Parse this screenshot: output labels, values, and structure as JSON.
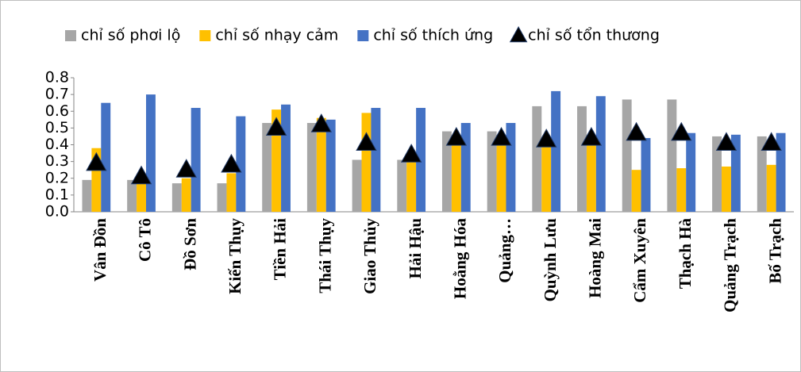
{
  "chart_data": {
    "type": "bar",
    "categories": [
      "Vân Đồn",
      "Cô Tô",
      "Đồ Sơn",
      "Kiến Thụy",
      "Tiền Hải",
      "Thái Thụy",
      "Giao Thủy",
      "Hải Hậu",
      "Hoằng Hóa",
      "Quảng…",
      "Quỳnh Lưu",
      "Hoàng Mai",
      "Cẩm Xuyên",
      "Thạch Hà",
      "Quảng Trạch",
      "Bố Trạch"
    ],
    "series": [
      {
        "name": "chỉ số phơi lộ",
        "color": "#a6a6a6",
        "type": "bar",
        "values": [
          0.19,
          0.19,
          0.17,
          0.17,
          0.53,
          0.53,
          0.31,
          0.31,
          0.48,
          0.48,
          0.63,
          0.63,
          0.67,
          0.67,
          0.45,
          0.45
        ]
      },
      {
        "name": "chỉ số nhạy cảm",
        "color": "#ffc000",
        "type": "bar",
        "values": [
          0.38,
          0.17,
          0.2,
          0.23,
          0.61,
          0.56,
          0.59,
          0.3,
          0.4,
          0.4,
          0.4,
          0.4,
          0.25,
          0.26,
          0.27,
          0.28
        ]
      },
      {
        "name": "chỉ số thích ứng",
        "color": "#4472c4",
        "type": "bar",
        "values": [
          0.65,
          0.7,
          0.62,
          0.57,
          0.64,
          0.55,
          0.62,
          0.62,
          0.53,
          0.53,
          0.72,
          0.69,
          0.44,
          0.47,
          0.46,
          0.47
        ]
      },
      {
        "name": "chỉ số tổn thương",
        "color": "#000000",
        "type": "marker",
        "values": [
          0.29,
          0.21,
          0.25,
          0.28,
          0.5,
          0.52,
          0.41,
          0.34,
          0.44,
          0.44,
          0.43,
          0.44,
          0.47,
          0.47,
          0.41,
          0.41
        ]
      }
    ],
    "ylim": [
      0,
      0.8
    ],
    "yticks": [
      {
        "value": 0,
        "label": "0.0"
      },
      0.1,
      0.2,
      0.3,
      0.4,
      0.5,
      0.6,
      0.7,
      0.8
    ]
  }
}
